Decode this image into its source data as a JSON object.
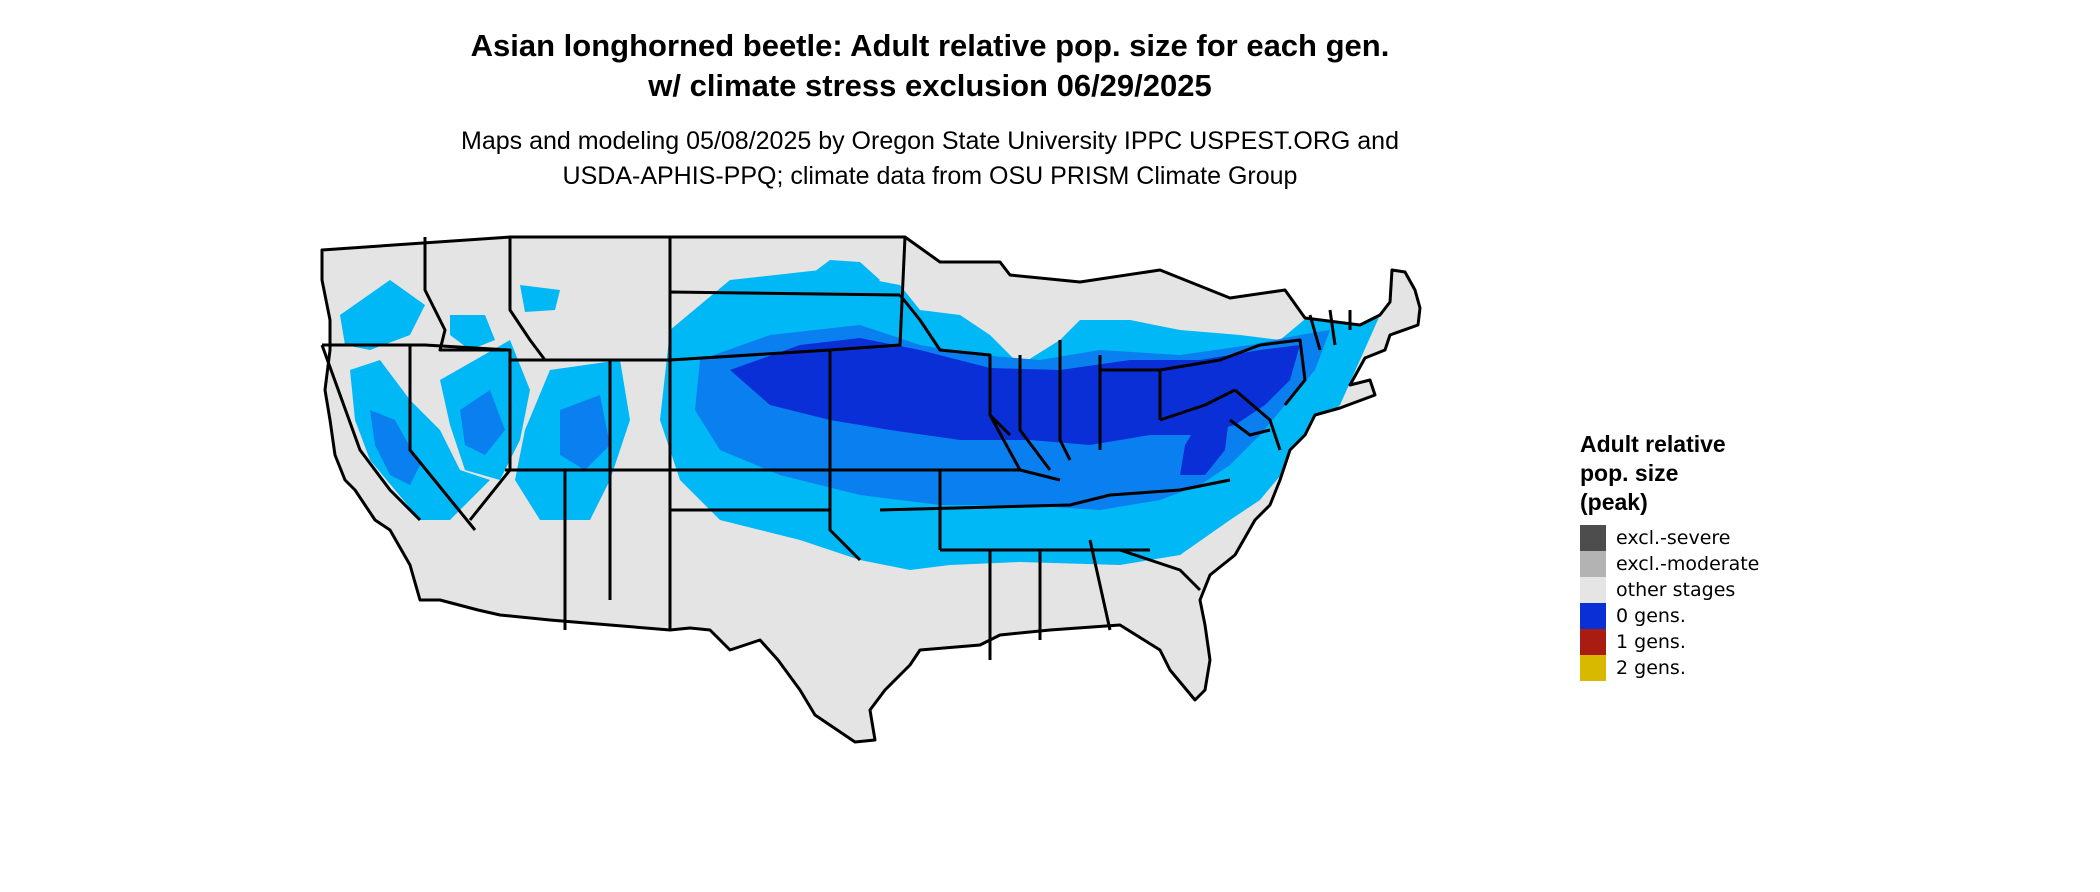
{
  "title": {
    "line1": "Asian longhorned beetle: Adult relative pop. size for each gen.",
    "line2": "w/ climate stress exclusion 06/29/2025"
  },
  "subtitle": {
    "line1": "Maps and modeling 05/08/2025 by Oregon State University IPPC USPEST.ORG and",
    "line2": "USDA-APHIS-PPQ; climate data from OSU PRISM Climate Group"
  },
  "legend": {
    "title_line1": "Adult relative",
    "title_line2": "pop. size",
    "title_line3": "(peak)",
    "items": [
      {
        "label": "excl.-severe",
        "color": "#4d4d4d"
      },
      {
        "label": "excl.-moderate",
        "color": "#b3b3b3"
      },
      {
        "label": "other stages",
        "color": "#e5e5e5"
      },
      {
        "label": "0 gens.",
        "color": "#0a2fd6"
      },
      {
        "label": "1 gens.",
        "color": "#a81c12"
      },
      {
        "label": "2 gens.",
        "color": "#d9b900"
      }
    ]
  },
  "map": {
    "colors": {
      "land": "#e4e4e4",
      "light_blue": "#00b8f5",
      "mid_blue": "#0a7ff0",
      "dark_blue": "#0a2fd6",
      "border": "#000000"
    }
  }
}
